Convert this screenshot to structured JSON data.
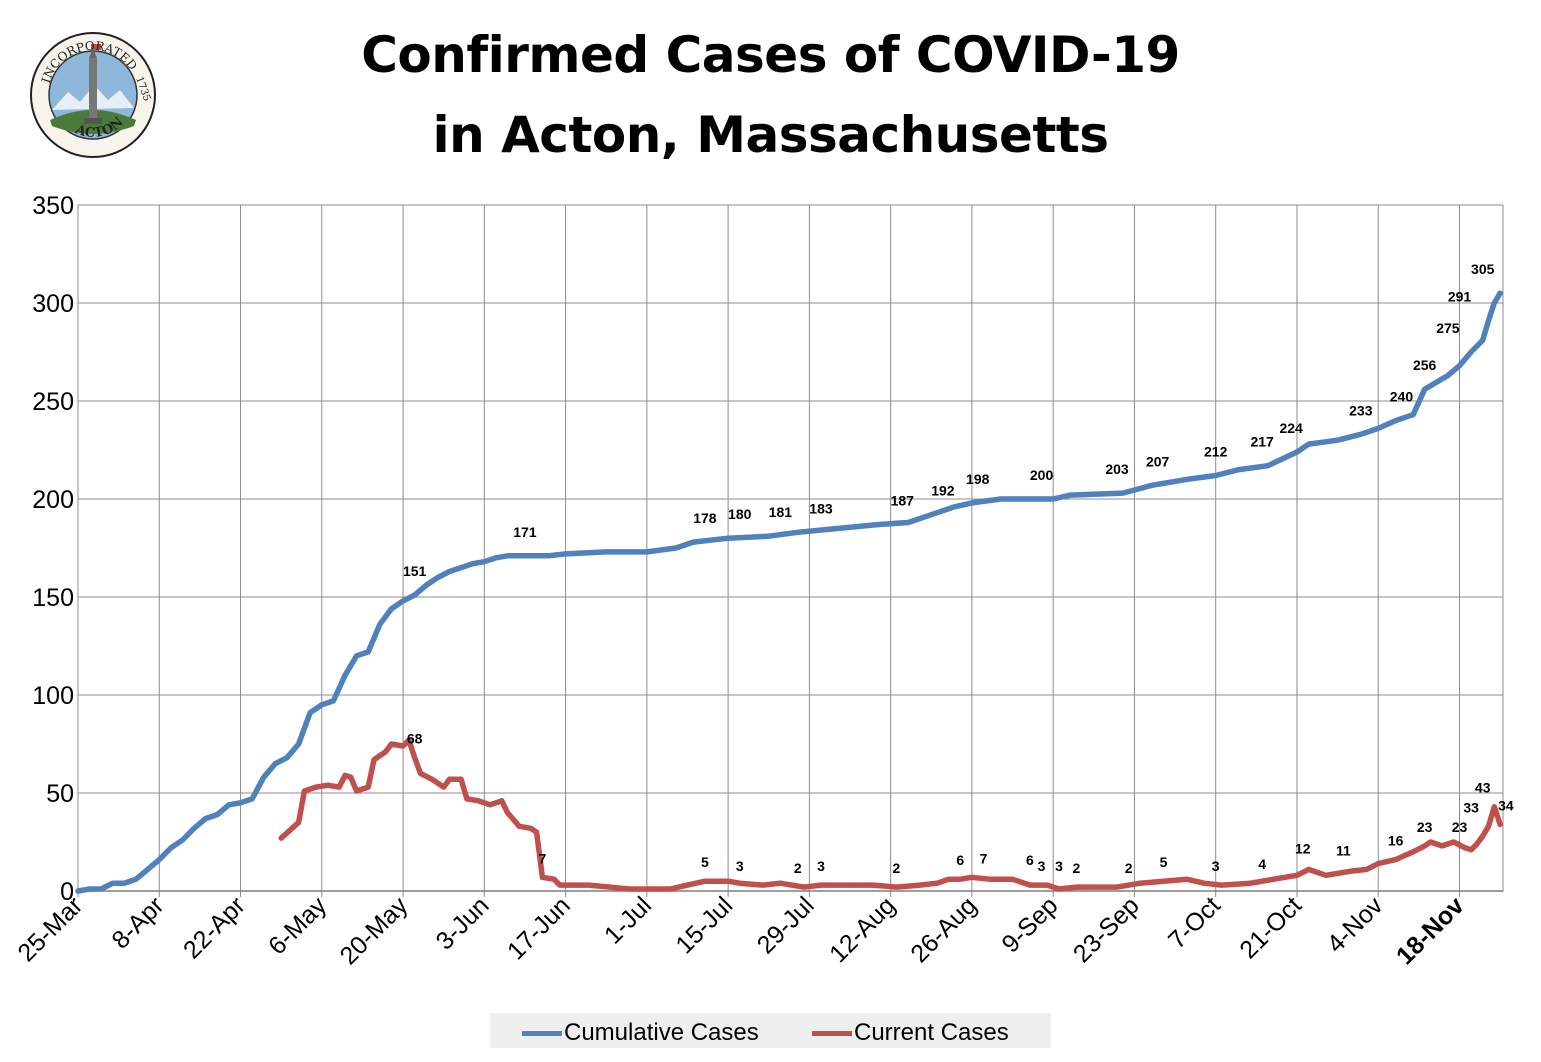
{
  "header": {
    "title_line1": "Confirmed Cases of COVID-19",
    "title_line2": "in Acton, Massachusetts"
  },
  "logo": {
    "top_text": "INCORPORATED",
    "year": "1735",
    "bottom_text": "ACTON"
  },
  "legend": {
    "items": [
      {
        "name": "Cumulative Cases",
        "color": "#4f81bd"
      },
      {
        "name": "Current Cases",
        "color": "#c0504d"
      }
    ]
  },
  "chart_data": {
    "type": "line",
    "title": "Confirmed Cases of COVID-19 in Acton, Massachusetts",
    "xlabel": "",
    "ylabel": "",
    "ylim": [
      0,
      350
    ],
    "yticks": [
      0,
      50,
      100,
      150,
      200,
      250,
      300,
      350
    ],
    "xticks": [
      "25-Mar",
      "8-Apr",
      "22-Apr",
      "6-May",
      "20-May",
      "3-Jun",
      "17-Jun",
      "1-Jul",
      "15-Jul",
      "29-Jul",
      "12-Aug",
      "26-Aug",
      "9-Sep",
      "23-Sep",
      "7-Oct",
      "21-Oct",
      "4-Nov",
      "18-Nov"
    ],
    "bold_xtick": "18-Nov",
    "grid": true,
    "legend_position": "bottom",
    "series": [
      {
        "name": "Cumulative Cases",
        "color": "#4f81bd",
        "points": [
          [
            "25-Mar",
            0
          ],
          [
            "27-Mar",
            1
          ],
          [
            "29-Mar",
            1
          ],
          [
            "31-Mar",
            4
          ],
          [
            "2-Apr",
            4
          ],
          [
            "4-Apr",
            6
          ],
          [
            "6-Apr",
            11
          ],
          [
            "8-Apr",
            16
          ],
          [
            "10-Apr",
            22
          ],
          [
            "12-Apr",
            26
          ],
          [
            "14-Apr",
            32
          ],
          [
            "16-Apr",
            37
          ],
          [
            "18-Apr",
            39
          ],
          [
            "20-Apr",
            44
          ],
          [
            "22-Apr",
            45
          ],
          [
            "24-Apr",
            47
          ],
          [
            "26-Apr",
            58
          ],
          [
            "28-Apr",
            65
          ],
          [
            "30-Apr",
            68
          ],
          [
            "2-May",
            75
          ],
          [
            "4-May",
            91
          ],
          [
            "6-May",
            95
          ],
          [
            "8-May",
            97
          ],
          [
            "10-May",
            110
          ],
          [
            "12-May",
            120
          ],
          [
            "14-May",
            122
          ],
          [
            "16-May",
            136
          ],
          [
            "18-May",
            144
          ],
          [
            "20-May",
            148
          ],
          [
            "22-May",
            151
          ],
          [
            "24-May",
            156
          ],
          [
            "26-May",
            160
          ],
          [
            "28-May",
            163
          ],
          [
            "30-May",
            165
          ],
          [
            "1-Jun",
            167
          ],
          [
            "3-Jun",
            168
          ],
          [
            "5-Jun",
            170
          ],
          [
            "7-Jun",
            171
          ],
          [
            "14-Jun",
            171
          ],
          [
            "17-Jun",
            172
          ],
          [
            "24-Jun",
            173
          ],
          [
            "1-Jul",
            173
          ],
          [
            "6-Jul",
            175
          ],
          [
            "9-Jul",
            178
          ],
          [
            "15-Jul",
            180
          ],
          [
            "22-Jul",
            181
          ],
          [
            "27-Jul",
            183
          ],
          [
            "3-Aug",
            185
          ],
          [
            "10-Aug",
            187
          ],
          [
            "15-Aug",
            188
          ],
          [
            "19-Aug",
            192
          ],
          [
            "23-Aug",
            196
          ],
          [
            "26-Aug",
            198
          ],
          [
            "31-Aug",
            200
          ],
          [
            "9-Sep",
            200
          ],
          [
            "12-Sep",
            202
          ],
          [
            "21-Sep",
            203
          ],
          [
            "26-Sep",
            207
          ],
          [
            "2-Oct",
            210
          ],
          [
            "7-Oct",
            212
          ],
          [
            "11-Oct",
            215
          ],
          [
            "16-Oct",
            217
          ],
          [
            "21-Oct",
            224
          ],
          [
            "23-Oct",
            228
          ],
          [
            "28-Oct",
            230
          ],
          [
            "1-Nov",
            233
          ],
          [
            "4-Nov",
            236
          ],
          [
            "7-Nov",
            240
          ],
          [
            "10-Nov",
            243
          ],
          [
            "12-Nov",
            256
          ],
          [
            "16-Nov",
            263
          ],
          [
            "18-Nov",
            268
          ],
          [
            "20-Nov",
            275
          ],
          [
            "22-Nov",
            281
          ],
          [
            "23-Nov",
            291
          ],
          [
            "24-Nov",
            300
          ],
          [
            "25-Nov",
            305
          ]
        ],
        "data_labels": [
          [
            "22-May",
            151
          ],
          [
            "10-Jun",
            171
          ],
          [
            "11-Jul",
            178
          ],
          [
            "17-Jul",
            180
          ],
          [
            "24-Jul",
            181
          ],
          [
            "31-Jul",
            183
          ],
          [
            "14-Aug",
            187
          ],
          [
            "21-Aug",
            192
          ],
          [
            "27-Aug",
            198
          ],
          [
            "7-Sep",
            200
          ],
          [
            "20-Sep",
            203
          ],
          [
            "27-Sep",
            207
          ],
          [
            "7-Oct",
            212
          ],
          [
            "15-Oct",
            217
          ],
          [
            "20-Oct",
            224
          ],
          [
            "1-Nov",
            233
          ],
          [
            "8-Nov",
            240
          ],
          [
            "12-Nov",
            256
          ],
          [
            "16-Nov",
            275
          ],
          [
            "18-Nov",
            291
          ],
          [
            "22-Nov",
            305
          ]
        ]
      },
      {
        "name": "Current Cases",
        "color": "#c0504d",
        "points": [
          [
            "29-Apr",
            27
          ],
          [
            "2-May",
            35
          ],
          [
            "3-May",
            51
          ],
          [
            "5-May",
            53
          ],
          [
            "7-May",
            54
          ],
          [
            "9-May",
            53
          ],
          [
            "10-May",
            59
          ],
          [
            "11-May",
            58
          ],
          [
            "12-May",
            51
          ],
          [
            "14-May",
            53
          ],
          [
            "15-May",
            67
          ],
          [
            "17-May",
            71
          ],
          [
            "18-May",
            75
          ],
          [
            "20-May",
            74
          ],
          [
            "21-May",
            77
          ],
          [
            "22-May",
            68
          ],
          [
            "23-May",
            60
          ],
          [
            "25-May",
            57
          ],
          [
            "27-May",
            53
          ],
          [
            "28-May",
            57
          ],
          [
            "30-May",
            57
          ],
          [
            "31-May",
            47
          ],
          [
            "2-Jun",
            46
          ],
          [
            "4-Jun",
            44
          ],
          [
            "6-Jun",
            46
          ],
          [
            "7-Jun",
            40
          ],
          [
            "9-Jun",
            33
          ],
          [
            "11-Jun",
            32
          ],
          [
            "12-Jun",
            30
          ],
          [
            "13-Jun",
            7
          ],
          [
            "15-Jun",
            6
          ],
          [
            "16-Jun",
            3
          ],
          [
            "21-Jun",
            3
          ],
          [
            "28-Jun",
            1
          ],
          [
            "5-Jul",
            1
          ],
          [
            "8-Jul",
            3
          ],
          [
            "11-Jul",
            5
          ],
          [
            "15-Jul",
            5
          ],
          [
            "17-Jul",
            4
          ],
          [
            "21-Jul",
            3
          ],
          [
            "24-Jul",
            4
          ],
          [
            "28-Jul",
            2
          ],
          [
            "31-Jul",
            3
          ],
          [
            "4-Aug",
            3
          ],
          [
            "9-Aug",
            3
          ],
          [
            "13-Aug",
            2
          ],
          [
            "17-Aug",
            3
          ],
          [
            "20-Aug",
            4
          ],
          [
            "22-Aug",
            6
          ],
          [
            "24-Aug",
            6
          ],
          [
            "26-Aug",
            7
          ],
          [
            "29-Aug",
            6
          ],
          [
            "2-Sep",
            6
          ],
          [
            "5-Sep",
            3
          ],
          [
            "8-Sep",
            3
          ],
          [
            "10-Sep",
            1
          ],
          [
            "13-Sep",
            2
          ],
          [
            "20-Sep",
            2
          ],
          [
            "24-Sep",
            4
          ],
          [
            "28-Sep",
            5
          ],
          [
            "2-Oct",
            6
          ],
          [
            "5-Oct",
            4
          ],
          [
            "8-Oct",
            3
          ],
          [
            "13-Oct",
            4
          ],
          [
            "17-Oct",
            6
          ],
          [
            "21-Oct",
            8
          ],
          [
            "23-Oct",
            11
          ],
          [
            "26-Oct",
            8
          ],
          [
            "30-Oct",
            10
          ],
          [
            "2-Nov",
            11
          ],
          [
            "4-Nov",
            14
          ],
          [
            "7-Nov",
            16
          ],
          [
            "10-Nov",
            20
          ],
          [
            "12-Nov",
            23
          ],
          [
            "13-Nov",
            25
          ],
          [
            "15-Nov",
            23
          ],
          [
            "17-Nov",
            25
          ],
          [
            "19-Nov",
            22
          ],
          [
            "20-Nov",
            21
          ],
          [
            "21-Nov",
            24
          ],
          [
            "22-Nov",
            28
          ],
          [
            "23-Nov",
            33
          ],
          [
            "24-Nov",
            43
          ],
          [
            "25-Nov",
            34
          ]
        ],
        "data_labels": [
          [
            "22-May",
            68
          ],
          [
            "13-Jun",
            7
          ],
          [
            "11-Jul",
            5
          ],
          [
            "17-Jul",
            3
          ],
          [
            "27-Jul",
            2
          ],
          [
            "31-Jul",
            3
          ],
          [
            "13-Aug",
            2
          ],
          [
            "24-Aug",
            6
          ],
          [
            "28-Aug",
            7
          ],
          [
            "5-Sep",
            6
          ],
          [
            "7-Sep",
            3
          ],
          [
            "10-Sep",
            3
          ],
          [
            "13-Sep",
            2
          ],
          [
            "22-Sep",
            2
          ],
          [
            "28-Sep",
            5
          ],
          [
            "7-Oct",
            3
          ],
          [
            "15-Oct",
            4
          ],
          [
            "22-Oct",
            12
          ],
          [
            "29-Oct",
            11
          ],
          [
            "7-Nov",
            16
          ],
          [
            "12-Nov",
            23
          ],
          [
            "18-Nov",
            23
          ],
          [
            "20-Nov",
            33
          ],
          [
            "22-Nov",
            43
          ],
          [
            "26-Nov",
            34
          ]
        ]
      }
    ]
  }
}
